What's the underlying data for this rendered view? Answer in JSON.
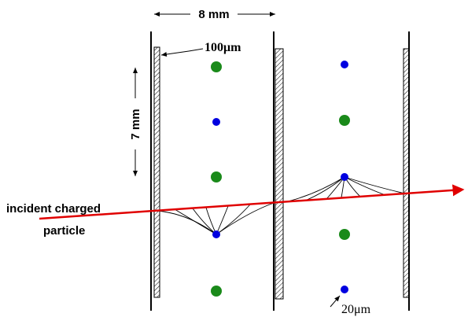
{
  "labels": {
    "width": "8 mm",
    "height": "7 mm",
    "wire_large": "100μm",
    "wire_small": "20μm",
    "particle_line1": "incident charged",
    "particle_line2": "particle"
  }
}
